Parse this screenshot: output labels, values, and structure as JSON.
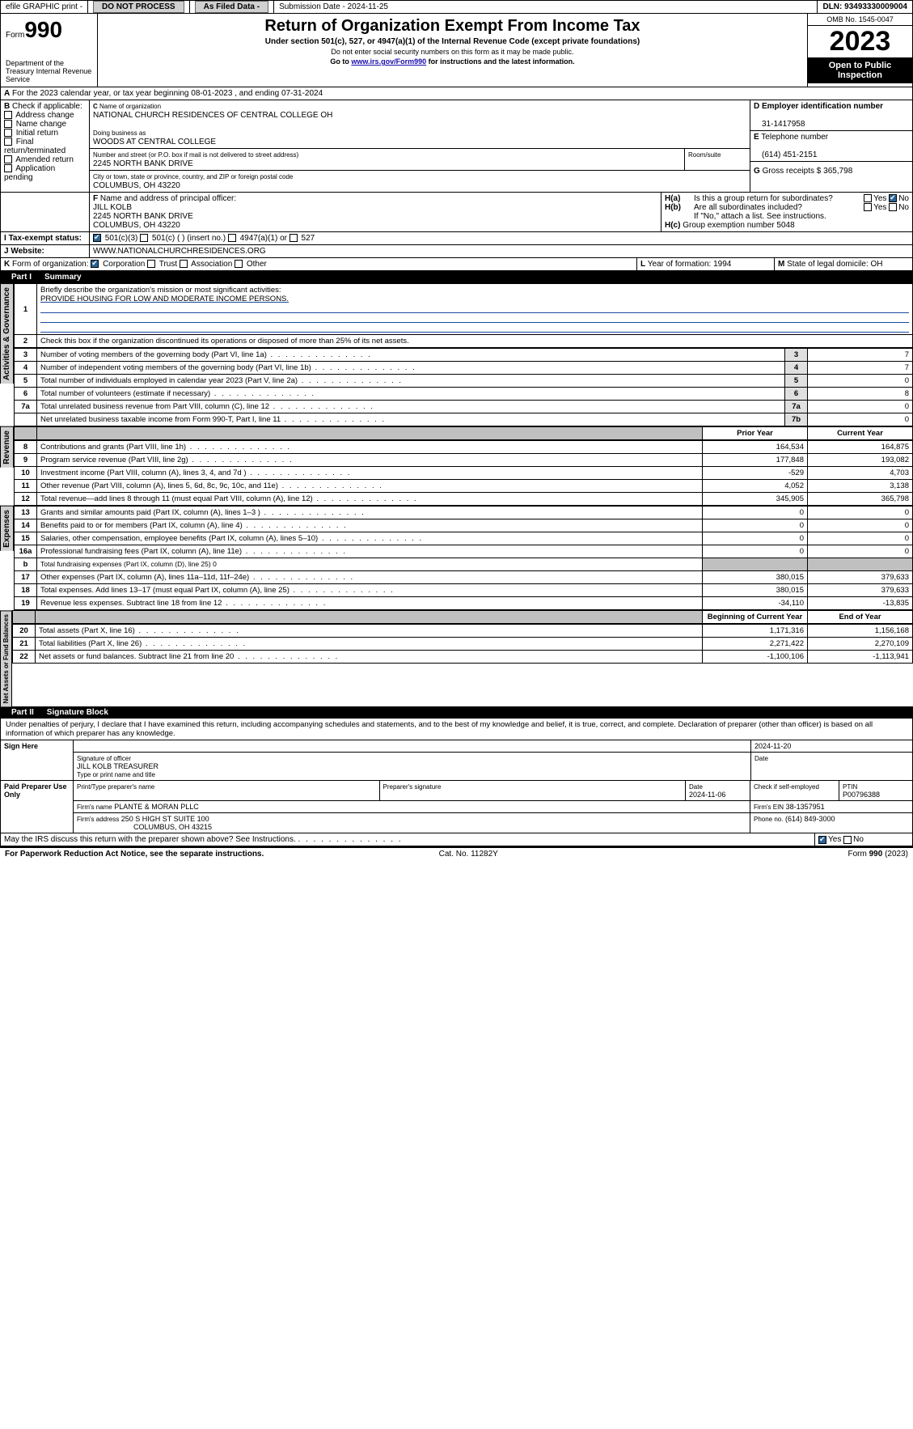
{
  "header": {
    "efile_label": "efile GRAPHIC print -",
    "submission_label": "Submission Date - 2024-11-25",
    "dln_label": "DLN: 93493330009004"
  },
  "title": {
    "form_label": "Form",
    "form_num": "990",
    "dept": "Department of the Treasury Internal Revenue Service",
    "main": "Return of Organization Exempt From Income Tax",
    "sub": "Under section 501(c), 527, or 4947(a)(1) of the Internal Revenue Code (except private foundations)",
    "ssn": "Do not enter social security numbers on this form as it may be made public.",
    "goto": "Go to",
    "goto_link": "www.irs.gov/Form990",
    "goto_tail": "for instructions and the latest information.",
    "omb": "OMB No. 1545-0047",
    "year": "2023",
    "open": "Open to Public Inspection"
  },
  "A": {
    "text": "For the 2023 calendar year, or tax year beginning 08-01-2023   , and ending 07-31-2024"
  },
  "B": {
    "label": "Check if applicable:",
    "items": [
      "Address change",
      "Name change",
      "Initial return",
      "Final return/terminated",
      "Amended return",
      "Application pending"
    ]
  },
  "C": {
    "name_label": "Name of organization",
    "name": "NATIONAL CHURCH RESIDENCES OF CENTRAL COLLEGE OH",
    "dba_label": "Doing business as",
    "dba": "WOODS AT CENTRAL COLLEGE",
    "street_label": "Number and street (or P.O. box if mail is not delivered to street address)",
    "street": "2245 NORTH BANK DRIVE",
    "room_label": "Room/suite",
    "city_label": "City or town, state or province, country, and ZIP or foreign postal code",
    "city": "COLUMBUS, OH  43220"
  },
  "D": {
    "label": "Employer identification number",
    "value": "31-1417958"
  },
  "E": {
    "label": "Telephone number",
    "value": "(614) 451-2151"
  },
  "G": {
    "label": "Gross receipts $",
    "value": "365,798"
  },
  "F": {
    "label": "Name and address of principal officer:",
    "name": "JILL KOLB",
    "street": "2245 NORTH BANK DRIVE",
    "city": "COLUMBUS, OH  43220"
  },
  "H": {
    "a": "Is this a group return for subordinates?",
    "b": "Are all subordinates included?",
    "b_note": "If \"No,\" attach a list. See instructions.",
    "c": "Group exemption number",
    "c_val": "5048",
    "yes": "Yes",
    "no": "No"
  },
  "I": {
    "label": "Tax-exempt status:",
    "opts": [
      "501(c)(3)",
      "501(c) (  ) (insert no.)",
      "4947(a)(1) or",
      "527"
    ]
  },
  "J": {
    "label": "Website:",
    "value": "WWW.NATIONALCHURCHRESIDENCES.ORG"
  },
  "K": {
    "label": "Form of organization:",
    "opts": [
      "Corporation",
      "Trust",
      "Association",
      "Other"
    ]
  },
  "L": {
    "label": "Year of formation:",
    "value": "1994"
  },
  "M": {
    "label": "State of legal domicile:",
    "value": "OH"
  },
  "partI": {
    "label": "Part I",
    "title": "Summary"
  },
  "summary": {
    "s1_label": "Briefly describe the organization's mission or most significant activities:",
    "s1_value": "PROVIDE HOUSING FOR LOW AND MODERATE INCOME PERSONS.",
    "s2": "Check this box      if the organization discontinued its operations or disposed of more than 25% of its net assets.",
    "rows_ag": [
      {
        "n": "3",
        "t": "Number of voting members of the governing body (Part VI, line 1a)",
        "ln": "3",
        "v": "7"
      },
      {
        "n": "4",
        "t": "Number of independent voting members of the governing body (Part VI, line 1b)",
        "ln": "4",
        "v": "7"
      },
      {
        "n": "5",
        "t": "Total number of individuals employed in calendar year 2023 (Part V, line 2a)",
        "ln": "5",
        "v": "0"
      },
      {
        "n": "6",
        "t": "Total number of volunteers (estimate if necessary)",
        "ln": "6",
        "v": "8"
      },
      {
        "n": "7a",
        "t": "Total unrelated business revenue from Part VIII, column (C), line 12",
        "ln": "7a",
        "v": "0"
      },
      {
        "n": "",
        "t": "Net unrelated business taxable income from Form 990-T, Part I, line 11",
        "ln": "7b",
        "v": "0"
      }
    ],
    "col_prior": "Prior Year",
    "col_current": "Current Year",
    "rows_rev": [
      {
        "n": "8",
        "t": "Contributions and grants (Part VIII, line 1h)",
        "p": "164,534",
        "c": "164,875"
      },
      {
        "n": "9",
        "t": "Program service revenue (Part VIII, line 2g)",
        "p": "177,848",
        "c": "193,082"
      },
      {
        "n": "10",
        "t": "Investment income (Part VIII, column (A), lines 3, 4, and 7d )",
        "p": "-529",
        "c": "4,703"
      },
      {
        "n": "11",
        "t": "Other revenue (Part VIII, column (A), lines 5, 6d, 8c, 9c, 10c, and 11e)",
        "p": "4,052",
        "c": "3,138"
      },
      {
        "n": "12",
        "t": "Total revenue—add lines 8 through 11 (must equal Part VIII, column (A), line 12)",
        "p": "345,905",
        "c": "365,798"
      }
    ],
    "rows_exp": [
      {
        "n": "13",
        "t": "Grants and similar amounts paid (Part IX, column (A), lines 1–3 )",
        "p": "0",
        "c": "0"
      },
      {
        "n": "14",
        "t": "Benefits paid to or for members (Part IX, column (A), line 4)",
        "p": "0",
        "c": "0"
      },
      {
        "n": "15",
        "t": "Salaries, other compensation, employee benefits (Part IX, column (A), lines 5–10)",
        "p": "0",
        "c": "0"
      },
      {
        "n": "16a",
        "t": "Professional fundraising fees (Part IX, column (A), line 11e)",
        "p": "0",
        "c": "0"
      },
      {
        "n": "b",
        "t": "Total fundraising expenses (Part IX, column (D), line 25) 0",
        "p": "__shade__",
        "c": "__shade__",
        "small": true
      },
      {
        "n": "17",
        "t": "Other expenses (Part IX, column (A), lines 11a–11d, 11f–24e)",
        "p": "380,015",
        "c": "379,633"
      },
      {
        "n": "18",
        "t": "Total expenses. Add lines 13–17 (must equal Part IX, column (A), line 25)",
        "p": "380,015",
        "c": "379,633"
      },
      {
        "n": "19",
        "t": "Revenue less expenses. Subtract line 18 from line 12",
        "p": "-34,110",
        "c": "-13,835"
      }
    ],
    "col_begin": "Beginning of Current Year",
    "col_end": "End of Year",
    "rows_net": [
      {
        "n": "20",
        "t": "Total assets (Part X, line 16)",
        "p": "1,171,316",
        "c": "1,156,168"
      },
      {
        "n": "21",
        "t": "Total liabilities (Part X, line 26)",
        "p": "2,271,422",
        "c": "2,270,109"
      },
      {
        "n": "22",
        "t": "Net assets or fund balances. Subtract line 21 from line 20",
        "p": "-1,100,106",
        "c": "-1,113,941"
      }
    ],
    "side_ag": "Activities & Governance",
    "side_rev": "Revenue",
    "side_exp": "Expenses",
    "side_net": "Net Assets or Fund Balances"
  },
  "partII": {
    "label": "Part II",
    "title": "Signature Block"
  },
  "sig": {
    "perjury": "Under penalties of perjury, I declare that I have examined this return, including accompanying schedules and statements, and to the best of my knowledge and belief, it is true, correct, and complete. Declaration of preparer (other than officer) is based on all information of which preparer has any knowledge.",
    "sign_here": "Sign Here",
    "sig_officer": "Signature of officer",
    "officer_name": "JILL KOLB  TREASURER",
    "type_name": "Type or print name and title",
    "date_label": "Date",
    "date_val": "2024-11-20",
    "paid": "Paid Preparer Use Only",
    "print_name": "Print/Type preparer's name",
    "prep_sig": "Preparer's signature",
    "prep_date": "2024-11-06",
    "check_self": "Check       if self-employed",
    "ptin_label": "PTIN",
    "ptin": "P00796388",
    "firm_name_label": "Firm's name",
    "firm_name": "PLANTE & MORAN PLLC",
    "firm_ein_label": "Firm's EIN",
    "firm_ein": "38-1357951",
    "firm_addr_label": "Firm's address",
    "firm_addr1": "250 S HIGH ST SUITE 100",
    "firm_addr2": "COLUMBUS, OH  43215",
    "phone_label": "Phone no.",
    "phone": "(614) 849-3000",
    "discuss": "May the IRS discuss this return with the preparer shown above? See Instructions."
  },
  "footer": {
    "paperwork": "For Paperwork Reduction Act Notice, see the separate instructions.",
    "cat": "Cat. No. 11282Y",
    "form": "Form 990 (2023)"
  },
  "colors": {
    "link": "#1a0dab",
    "check": "#2a6496",
    "underline": "#1b4aa0"
  }
}
